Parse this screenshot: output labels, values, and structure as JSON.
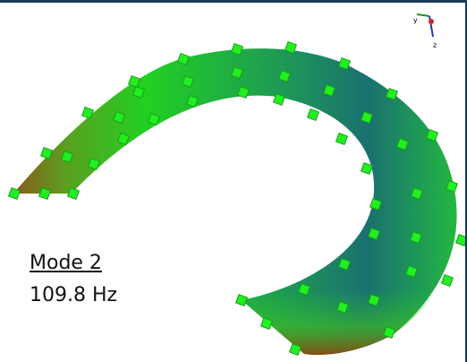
{
  "label": {
    "title": "Mode 2",
    "frequency": "109.8 Hz"
  },
  "triad": {
    "y": "y",
    "z": "z"
  }
}
